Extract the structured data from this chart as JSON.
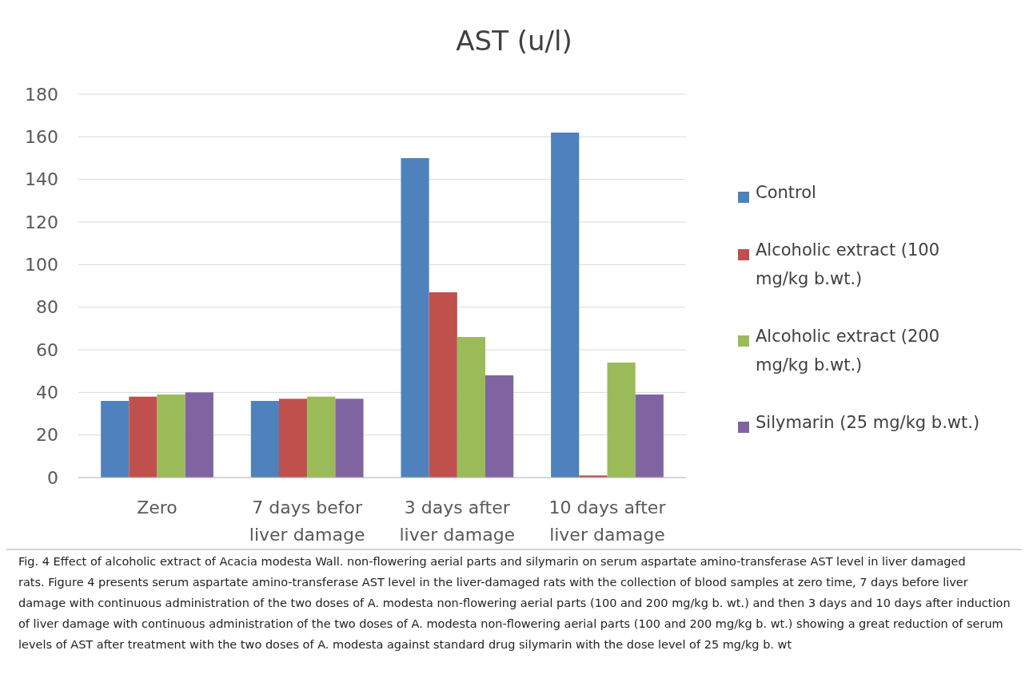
{
  "chart_data": {
    "type": "bar",
    "title": "AST (u/l)",
    "categories": [
      "Zero",
      "7 days befor liver damage",
      "3 days after liver damage",
      "10 days after liver damage"
    ],
    "series": [
      {
        "name": "Control",
        "color": "#4f81bd",
        "values": [
          36,
          36,
          150,
          162
        ]
      },
      {
        "name": "Alcoholic extract (100 mg/kg b.wt.)",
        "color": "#c0504d",
        "values": [
          38,
          37,
          87,
          1
        ]
      },
      {
        "name": "Alcoholic extract (200 mg/kg b.wt.)",
        "color": "#9bbb59",
        "values": [
          39,
          38,
          66,
          54
        ]
      },
      {
        "name": "Silymarin (25 mg/kg b.wt.)",
        "color": "#8064a2",
        "values": [
          40,
          37,
          48,
          39
        ]
      }
    ],
    "ylim": [
      0,
      180
    ],
    "yticks": [
      0,
      20,
      40,
      60,
      80,
      100,
      120,
      140,
      160,
      180
    ],
    "grid": "y",
    "legend": "right",
    "annotations": [
      "Fig. 4 Effect of alcoholic extract of Acacia modesta Wall. non-flowering aerial parts and silymarin on serum aspartate amino-transferase AST level in liver damaged rats. Figure 4 presents serum aspartate amino-transferase AST level in the liver-damaged rats with the collection of blood samples at zero time, 7 days before liver damage with continuous administration of the two doses of A. modesta non-flowering aerial parts (100 and 200 mg/kg b. wt.) and then 3 days and 10 days after induction of liver damage with continuous administration of the two doses of A. modesta non-flowering aerial parts (100 and 200 mg/kg b. wt.) showing a great reduction of serum levels of AST after treatment with the two doses of A. modesta against standard drug silymarin with the dose level of 25 mg/kg b. wt"
    ]
  }
}
